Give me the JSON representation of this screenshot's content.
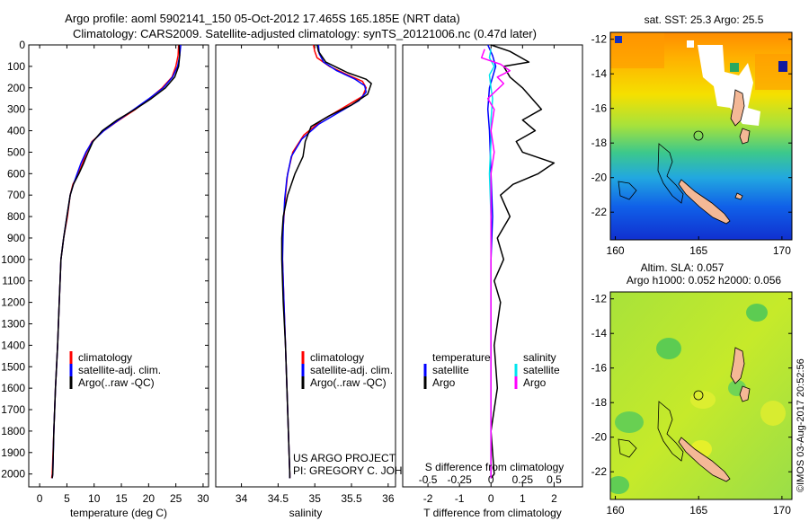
{
  "header": {
    "title_line1": "Argo profile: aoml 5902141_150 05-Oct-2012 17.465S 165.185E (NRT data)",
    "title_line2": "Climatology: CARS2009. Satellite-adjusted climatology: synTS_20121006.nc (0.47d later)"
  },
  "colors": {
    "climatology": "#ff0000",
    "satellite_clim": "#0000ff",
    "argo": "#000000",
    "satellite_diff_s": "#00e5ee",
    "argo_diff_s": "#ff00ff"
  },
  "depth_axis": {
    "label": "",
    "ticks": [
      0,
      100,
      200,
      300,
      400,
      500,
      600,
      700,
      800,
      900,
      1000,
      1100,
      1200,
      1300,
      1400,
      1500,
      1600,
      1700,
      1800,
      1900,
      2000
    ],
    "ylim": [
      0,
      2060
    ]
  },
  "chart_data": [
    {
      "type": "line",
      "name": "temperature",
      "xlabel": "temperature (deg C)",
      "xlim": [
        -2,
        31
      ],
      "xticks": [
        0,
        5,
        10,
        15,
        20,
        25,
        30
      ],
      "legend": [
        "climatology",
        "satellite-adj. clim.",
        "Argo(..raw -QC)"
      ],
      "series": [
        {
          "name": "climatology",
          "points": [
            [
              25.5,
              0
            ],
            [
              25.4,
              50
            ],
            [
              25.0,
              100
            ],
            [
              24.3,
              150
            ],
            [
              22.5,
              200
            ],
            [
              20.2,
              250
            ],
            [
              17.6,
              300
            ],
            [
              14.6,
              350
            ],
            [
              11.8,
              400
            ],
            [
              9.6,
              450
            ],
            [
              8.6,
              500
            ],
            [
              7.9,
              550
            ],
            [
              7.1,
              600
            ],
            [
              6.1,
              650
            ],
            [
              5.6,
              700
            ],
            [
              5.1,
              800
            ],
            [
              4.4,
              900
            ],
            [
              3.9,
              1000
            ],
            [
              3.6,
              1200
            ],
            [
              3.3,
              1400
            ],
            [
              2.9,
              1600
            ],
            [
              2.6,
              1800
            ],
            [
              2.3,
              2000
            ],
            [
              2.2,
              2020
            ]
          ]
        },
        {
          "name": "satellite-adj. clim.",
          "points": [
            [
              25.9,
              0
            ],
            [
              25.7,
              50
            ],
            [
              25.3,
              100
            ],
            [
              24.4,
              150
            ],
            [
              22.7,
              200
            ],
            [
              20.1,
              250
            ],
            [
              17.3,
              300
            ],
            [
              14.5,
              350
            ],
            [
              11.8,
              400
            ],
            [
              9.7,
              450
            ],
            [
              8.5,
              500
            ],
            [
              7.6,
              550
            ],
            [
              6.9,
              600
            ],
            [
              6.2,
              650
            ],
            [
              5.6,
              700
            ],
            [
              5.0,
              800
            ],
            [
              4.4,
              900
            ],
            [
              3.9,
              1000
            ],
            [
              3.6,
              1200
            ],
            [
              3.3,
              1400
            ],
            [
              2.9,
              1600
            ],
            [
              2.6,
              1800
            ],
            [
              2.4,
              2000
            ],
            [
              2.3,
              2020
            ]
          ]
        },
        {
          "name": "Argo",
          "points": [
            [
              25.6,
              0
            ],
            [
              25.7,
              50
            ],
            [
              25.5,
              100
            ],
            [
              24.8,
              150
            ],
            [
              23.1,
              200
            ],
            [
              20.5,
              250
            ],
            [
              17.5,
              300
            ],
            [
              14.2,
              350
            ],
            [
              11.5,
              400
            ],
            [
              9.8,
              450
            ],
            [
              8.9,
              500
            ],
            [
              8.1,
              550
            ],
            [
              7.2,
              600
            ],
            [
              6.2,
              650
            ],
            [
              5.6,
              700
            ],
            [
              5.0,
              800
            ],
            [
              4.4,
              900
            ],
            [
              3.9,
              1000
            ],
            [
              3.6,
              1200
            ],
            [
              3.3,
              1400
            ],
            [
              2.9,
              1600
            ],
            [
              2.6,
              1800
            ],
            [
              2.4,
              2000
            ],
            [
              2.3,
              2020
            ]
          ]
        }
      ]
    },
    {
      "type": "line",
      "name": "salinity",
      "xlabel": "salinity",
      "xlim": [
        33.65,
        36.1
      ],
      "xticks": [
        34,
        34.5,
        35,
        35.5,
        36
      ],
      "legend": [
        "climatology",
        "satellite-adj. clim.",
        "Argo(..raw -QC)"
      ],
      "annotation": [
        "US ARGO PROJECT",
        "PI: GREGORY C. JOHNSON"
      ],
      "series": [
        {
          "name": "climatology",
          "points": [
            [
              34.98,
              0
            ],
            [
              35.0,
              30
            ],
            [
              35.03,
              60
            ],
            [
              35.2,
              100
            ],
            [
              35.45,
              140
            ],
            [
              35.65,
              170
            ],
            [
              35.7,
              200
            ],
            [
              35.65,
              240
            ],
            [
              35.4,
              290
            ],
            [
              35.1,
              350
            ],
            [
              34.85,
              420
            ],
            [
              34.7,
              500
            ],
            [
              34.63,
              600
            ],
            [
              34.6,
              700
            ],
            [
              34.58,
              800
            ],
            [
              34.56,
              900
            ],
            [
              34.56,
              1000
            ],
            [
              34.58,
              1200
            ],
            [
              34.6,
              1400
            ],
            [
              34.62,
              1600
            ],
            [
              34.64,
              1800
            ],
            [
              34.66,
              2000
            ],
            [
              34.66,
              2020
            ]
          ]
        },
        {
          "name": "satellite-adj. clim.",
          "points": [
            [
              35.05,
              0
            ],
            [
              35.06,
              40
            ],
            [
              35.12,
              80
            ],
            [
              35.3,
              120
            ],
            [
              35.55,
              160
            ],
            [
              35.68,
              190
            ],
            [
              35.7,
              220
            ],
            [
              35.6,
              260
            ],
            [
              35.35,
              310
            ],
            [
              35.05,
              370
            ],
            [
              34.82,
              440
            ],
            [
              34.68,
              520
            ],
            [
              34.62,
              620
            ],
            [
              34.59,
              720
            ],
            [
              34.57,
              850
            ],
            [
              34.56,
              1000
            ],
            [
              34.58,
              1200
            ],
            [
              34.6,
              1400
            ],
            [
              34.62,
              1600
            ],
            [
              34.64,
              1800
            ],
            [
              34.66,
              2000
            ],
            [
              34.66,
              2020
            ]
          ]
        },
        {
          "name": "Argo",
          "points": [
            [
              35.03,
              0
            ],
            [
              35.05,
              30
            ],
            [
              35.15,
              80
            ],
            [
              35.45,
              130
            ],
            [
              35.7,
              160
            ],
            [
              35.77,
              180
            ],
            [
              35.72,
              230
            ],
            [
              35.5,
              280
            ],
            [
              35.2,
              330
            ],
            [
              34.95,
              380
            ],
            [
              34.87,
              450
            ],
            [
              34.84,
              520
            ],
            [
              34.73,
              600
            ],
            [
              34.63,
              700
            ],
            [
              34.57,
              800
            ],
            [
              34.55,
              900
            ],
            [
              34.55,
              1000
            ],
            [
              34.57,
              1200
            ],
            [
              34.6,
              1400
            ],
            [
              34.62,
              1600
            ],
            [
              34.64,
              1800
            ],
            [
              34.66,
              2000
            ],
            [
              34.66,
              2020
            ]
          ]
        }
      ]
    },
    {
      "type": "line",
      "name": "difference",
      "xlabel": "T difference from climatology",
      "xlabel_top": "S difference from climatology",
      "xlim": [
        -2.8,
        2.9
      ],
      "xticks": [
        -2,
        -1,
        0,
        1,
        2
      ],
      "s_ticks": [
        "-0.5",
        "-0.25",
        "0",
        "0.25",
        "0.5"
      ],
      "s_scale": 4,
      "legend_headers": [
        "temperature",
        "salinity"
      ],
      "legend_left": [
        "satellite",
        "Argo"
      ],
      "legend_right": [
        "satellite",
        "Argo"
      ],
      "series": [
        {
          "name": "T satellite",
          "points": [
            [
              -0.1,
              0
            ],
            [
              0.05,
              50
            ],
            [
              0.15,
              100
            ],
            [
              0.05,
              150
            ],
            [
              -0.05,
              200
            ],
            [
              -0.1,
              300
            ],
            [
              -0.05,
              400
            ],
            [
              0.0,
              600
            ],
            [
              0.05,
              800
            ],
            [
              0.0,
              1000
            ],
            [
              0.0,
              1500
            ],
            [
              0.0,
              2020
            ]
          ]
        },
        {
          "name": "T Argo",
          "points": [
            [
              0.0,
              0
            ],
            [
              0.6,
              30
            ],
            [
              1.2,
              80
            ],
            [
              0.4,
              100
            ],
            [
              0.6,
              150
            ],
            [
              1.0,
              200
            ],
            [
              1.6,
              300
            ],
            [
              1.0,
              350
            ],
            [
              1.4,
              400
            ],
            [
              0.8,
              450
            ],
            [
              1.0,
              500
            ],
            [
              2.0,
              550
            ],
            [
              1.5,
              600
            ],
            [
              0.7,
              650
            ],
            [
              0.3,
              700
            ],
            [
              0.6,
              800
            ],
            [
              0.2,
              900
            ],
            [
              0.4,
              1000
            ],
            [
              0.1,
              1100
            ],
            [
              0.3,
              1200
            ],
            [
              0.1,
              1400
            ],
            [
              0.2,
              1600
            ],
            [
              0.0,
              1800
            ],
            [
              0.1,
              2000
            ],
            [
              0.0,
              2020
            ]
          ]
        },
        {
          "name": "S satellite",
          "points": [
            [
              0.0,
              20
            ],
            [
              -0.05,
              60
            ],
            [
              0.1,
              100
            ],
            [
              -0.05,
              140
            ],
            [
              0.0,
              200
            ],
            [
              0.05,
              250
            ],
            [
              0.0,
              350
            ],
            [
              0.0,
              450
            ],
            [
              -0.05,
              600
            ],
            [
              0.0,
              800
            ],
            [
              0.0,
              1000
            ],
            [
              0.0,
              2020
            ]
          ]
        },
        {
          "name": "S Argo",
          "points": [
            [
              -0.2,
              20
            ],
            [
              -0.3,
              60
            ],
            [
              0.3,
              90
            ],
            [
              0.6,
              120
            ],
            [
              0.2,
              150
            ],
            [
              0.4,
              180
            ],
            [
              -0.1,
              250
            ],
            [
              0.1,
              300
            ],
            [
              0.0,
              400
            ],
            [
              0.1,
              500
            ],
            [
              0.0,
              600
            ],
            [
              0.0,
              800
            ],
            [
              0.0,
              1000
            ],
            [
              0.0,
              2020
            ]
          ]
        }
      ]
    }
  ],
  "maps": {
    "sst": {
      "title": "sat. SST: 25.3 Argo: 25.5",
      "lat_ticks": [
        "-12",
        "-14",
        "-16",
        "-18",
        "-20",
        "-22"
      ],
      "lon_ticks": [
        "160",
        "165",
        "170"
      ]
    },
    "sla": {
      "title1": "Altim. SLA: 0.057",
      "title2": "Argo h1000: 0.052 h2000: 0.056",
      "lat_ticks": [
        "-12",
        "-14",
        "-16",
        "-18",
        "-20",
        "-22"
      ],
      "lon_ticks": [
        "160",
        "165",
        "170"
      ]
    }
  },
  "footer": {
    "stamp": "©IMOS 03-Aug-2017 20:52:56"
  }
}
